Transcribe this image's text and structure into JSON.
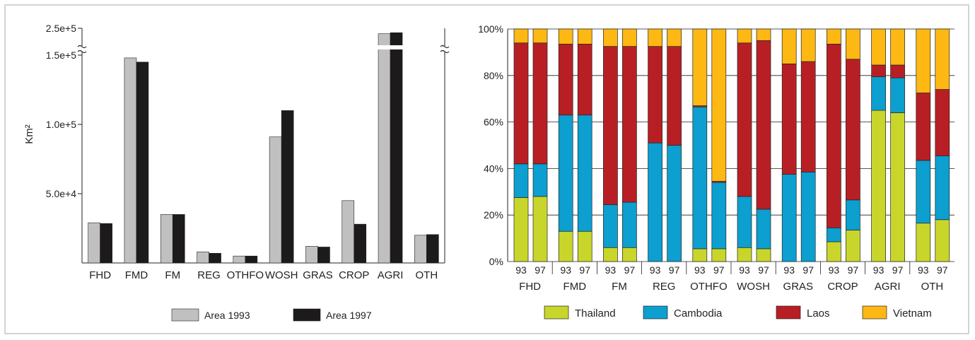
{
  "chart_data": [
    {
      "type": "bar",
      "ylabel": "Km²",
      "ylim": [
        0,
        250000
      ],
      "yticks": [
        "2.5e+5",
        "1.5e+5",
        "1.0e+5",
        "5.0e+4"
      ],
      "axis_break": true,
      "categories": [
        "FHD",
        "FMD",
        "FM",
        "REG",
        "OTHFO",
        "WOSH",
        "GRAS",
        "CROP",
        "AGRI",
        "OTH"
      ],
      "series": [
        {
          "name": "Area 1993",
          "color": "#c0c0c0",
          "values": [
            29000,
            148000,
            35000,
            8000,
            5000,
            91000,
            12000,
            45000,
            228000,
            20000
          ]
        },
        {
          "name": "Area 1997",
          "color": "#1c1a1a",
          "values": [
            28500,
            145000,
            35000,
            7000,
            5000,
            110000,
            11500,
            28000,
            232000,
            20500
          ]
        }
      ],
      "legend": {
        "position": "bottom",
        "labels": [
          "Area 1993",
          "Area 1997"
        ]
      }
    },
    {
      "type": "bar",
      "stacked": true,
      "ylim": [
        0,
        100
      ],
      "yticks": [
        "100%",
        "80%",
        "60%",
        "40%",
        "20%",
        "0%"
      ],
      "grid": true,
      "categories": [
        "FHD",
        "FMD",
        "FM",
        "REG",
        "OTHFO",
        "WOSH",
        "GRAS",
        "CROP",
        "AGRI",
        "OTH"
      ],
      "year_labels": [
        "93",
        "97"
      ],
      "series": [
        {
          "name": "Thailand",
          "color": "#c8d62b",
          "values93": [
            27.5,
            13,
            6,
            0,
            5.5,
            6,
            0,
            8.5,
            65,
            16.5
          ],
          "values97": [
            28,
            13,
            6,
            0,
            5.5,
            5.5,
            0,
            13.5,
            64,
            18
          ]
        },
        {
          "name": "Cambodia",
          "color": "#0c9fcf",
          "values93": [
            14.5,
            50,
            18.5,
            51,
            61,
            22,
            37.5,
            6,
            14.5,
            27
          ],
          "values97": [
            14,
            50,
            19.5,
            50,
            28.5,
            17,
            38.5,
            13,
            15,
            27.5
          ]
        },
        {
          "name": "Laos",
          "color": "#b81f24",
          "values93": [
            52,
            30.5,
            68,
            41.5,
            0.5,
            66,
            47.5,
            79,
            5,
            29
          ],
          "values97": [
            52,
            30.5,
            67,
            42.5,
            0.5,
            72.5,
            47.5,
            60.5,
            5.5,
            28.5
          ]
        },
        {
          "name": "Vietnam",
          "color": "#fdb813",
          "values93": [
            6,
            6.5,
            7.5,
            7.5,
            33,
            6,
            15,
            6.5,
            15.5,
            27.5
          ],
          "values97": [
            6,
            6.5,
            7.5,
            7.5,
            65.5,
            5,
            14,
            13,
            15.5,
            26
          ]
        }
      ],
      "legend": {
        "position": "bottom",
        "labels": [
          "Thailand",
          "Cambodia",
          "Laos",
          "Vietnam"
        ]
      }
    }
  ]
}
